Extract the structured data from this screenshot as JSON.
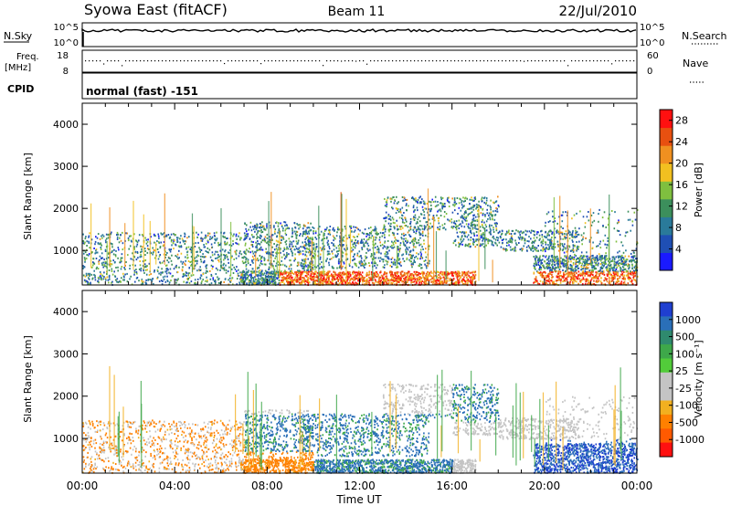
{
  "header": {
    "station": "Syowa East (fitACF)",
    "beam": "Beam 11",
    "date": "22/Jul/2010"
  },
  "top_panels": {
    "nsky_label": "N.Sky",
    "nsky_ticks": [
      "10^5",
      "10^0"
    ],
    "nsearch_label": "N.Search",
    "nsearch_ticks": [
      "10^5",
      "10^0"
    ],
    "freq_label_1": "Freq.",
    "freq_label_2": "[MHz]",
    "freq_ticks": [
      "18",
      "8"
    ],
    "nave_label": "Nave",
    "nave_ticks": [
      "60",
      "0"
    ],
    "cpid_label": "CPID",
    "cpid_value": "normal (fast) -151"
  },
  "x_axis": {
    "label": "Time UT",
    "ticks": [
      "00:00",
      "04:00",
      "08:00",
      "12:00",
      "16:00",
      "20:00",
      "00:00"
    ]
  },
  "chart_data": [
    {
      "type": "heatmap",
      "title": "",
      "xlabel": "Time UT",
      "ylabel": "Slant Range [km]",
      "x_range": [
        "00:00",
        "24:00"
      ],
      "y_range": [
        180,
        4500
      ],
      "y_ticks": [
        1000,
        2000,
        3000,
        4000
      ],
      "colorbar": {
        "label": "Power [dB]",
        "ticks": [
          4,
          8,
          12,
          16,
          20,
          24,
          28
        ],
        "range": [
          0,
          30
        ],
        "colors": [
          "#1a1aff",
          "#1f4fb4",
          "#2a7a9a",
          "#3c8f5c",
          "#7fbf3f",
          "#f2c020",
          "#f09020",
          "#e85010",
          "#ff1010"
        ]
      }
    },
    {
      "type": "heatmap",
      "title": "",
      "xlabel": "Time UT",
      "ylabel": "Slant Range [km]",
      "x_range": [
        "00:00",
        "24:00"
      ],
      "y_range": [
        180,
        4500
      ],
      "y_ticks": [
        1000,
        2000,
        3000,
        4000
      ],
      "colorbar": {
        "label": "Velocity [m s⁻¹]",
        "ticks": [
          1000,
          500,
          100,
          25,
          -25,
          -100,
          -500,
          -1000
        ],
        "colors": [
          "#1f3fd0",
          "#2a6fb8",
          "#2f8a6e",
          "#3ea84a",
          "#52cc3a",
          "#c4c4c4",
          "#c4c4c4",
          "#f2b020",
          "#ff8000",
          "#ff5a00",
          "#ff1010"
        ]
      }
    }
  ]
}
